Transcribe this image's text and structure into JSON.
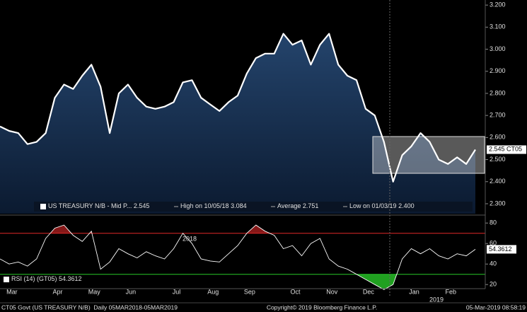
{
  "chart_data": [
    {
      "type": "area",
      "series": [
        {
          "name": "US TREASURY N/B - Mid P...",
          "color": "#ffffff",
          "values": [
            2.65,
            2.63,
            2.62,
            2.57,
            2.58,
            2.62,
            2.78,
            2.84,
            2.82,
            2.88,
            2.93,
            2.83,
            2.62,
            2.8,
            2.84,
            2.78,
            2.74,
            2.73,
            2.74,
            2.76,
            2.85,
            2.86,
            2.78,
            2.75,
            2.72,
            2.76,
            2.79,
            2.89,
            2.96,
            2.98,
            2.98,
            3.07,
            3.02,
            3.04,
            2.93,
            3.02,
            3.07,
            2.93,
            2.88,
            2.86,
            2.73,
            2.7,
            2.58,
            2.4,
            2.52,
            2.56,
            2.62,
            2.58,
            2.5,
            2.48,
            2.51,
            2.48,
            2.545
          ]
        }
      ],
      "ticker": "CT05",
      "ylim": [
        2.255,
        3.223
      ],
      "yticks": [
        {
          "value": 2.3,
          "label": "2.300"
        },
        {
          "value": 2.4,
          "label": "2.400"
        },
        {
          "value": 2.5,
          "label": "2.500"
        },
        {
          "value": 2.6,
          "label": "2.600"
        },
        {
          "value": 2.7,
          "label": "2.700"
        },
        {
          "value": 2.8,
          "label": "2.800"
        },
        {
          "value": 2.9,
          "label": "2.900"
        },
        {
          "value": 3.0,
          "label": "3.000"
        },
        {
          "value": 3.1,
          "label": "3.100"
        },
        {
          "value": 3.2,
          "label": "3.200"
        }
      ],
      "legend_items": [
        {
          "text": "High on 10/05/18",
          "value": 3.084
        },
        {
          "text": "Average",
          "value": 2.751
        },
        {
          "text": "Low on 01/03/19",
          "value": 2.4,
          "value_label": "2.400"
        }
      ]
    },
    {
      "type": "line",
      "categories": [
        null,
        "Mar",
        null,
        null,
        null,
        null,
        "Apr",
        null,
        null,
        null,
        "May",
        null,
        null,
        null,
        "Jun",
        null,
        null,
        null,
        null,
        "Jul",
        null,
        null,
        null,
        "Aug",
        null,
        null,
        null,
        "Sep",
        null,
        null,
        null,
        null,
        "Oct",
        null,
        null,
        null,
        "Nov",
        null,
        null,
        null,
        "Dec",
        null,
        null,
        null,
        null,
        "Jan",
        null,
        null,
        null,
        "Feb",
        null,
        null,
        null
      ],
      "year_labels": [
        "2018",
        "2019"
      ],
      "series": [
        {
          "name": "RSI (14) (GT05)",
          "color": "#ffffff",
          "values": [
            45,
            40,
            42,
            38,
            45,
            65,
            75,
            78,
            68,
            62,
            72,
            35,
            42,
            55,
            50,
            46,
            52,
            48,
            45,
            55,
            70,
            60,
            45,
            43,
            42,
            50,
            58,
            70,
            78,
            72,
            68,
            55,
            58,
            48,
            60,
            65,
            45,
            38,
            35,
            30,
            25,
            20,
            15,
            20,
            45,
            55,
            50,
            55,
            48,
            45,
            50,
            48,
            54.3612
          ]
        }
      ],
      "levels": [
        {
          "value": 70,
          "color": "#e02828"
        },
        {
          "value": 30,
          "color": "#28c828"
        }
      ],
      "ylim": [
        16,
        85
      ],
      "yticks": [
        20,
        40,
        60,
        80
      ]
    }
  ],
  "footer": {
    "left": "CT05 Govt (US TREASURY N/B)  Daily 05MAR2018-05MAR2019",
    "center": "Copyright© 2019 Bloomberg Finance L.P.",
    "right": "05-Mar-2019 08:58:19"
  }
}
